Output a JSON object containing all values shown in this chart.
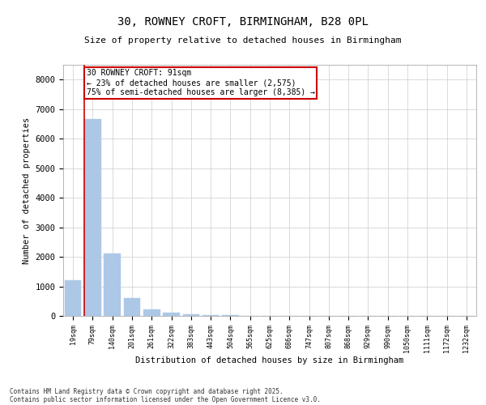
{
  "title_line1": "30, ROWNEY CROFT, BIRMINGHAM, B28 0PL",
  "title_line2": "Size of property relative to detached houses in Birmingham",
  "xlabel": "Distribution of detached houses by size in Birmingham",
  "ylabel": "Number of detached properties",
  "categories": [
    "19sqm",
    "79sqm",
    "140sqm",
    "201sqm",
    "261sqm",
    "322sqm",
    "383sqm",
    "443sqm",
    "504sqm",
    "565sqm",
    "625sqm",
    "686sqm",
    "747sqm",
    "807sqm",
    "868sqm",
    "929sqm",
    "990sqm",
    "1050sqm",
    "1111sqm",
    "1172sqm",
    "1232sqm"
  ],
  "values": [
    1200,
    6650,
    2100,
    600,
    230,
    120,
    60,
    30,
    15,
    8,
    5,
    3,
    2,
    2,
    1,
    1,
    1,
    0,
    0,
    0,
    0
  ],
  "bar_color": "#adc8e6",
  "bar_edge_color": "#adc8e6",
  "vline_color": "#cc0000",
  "vline_x_idx": 1,
  "annotation_text": "30 ROWNEY CROFT: 91sqm\n← 23% of detached houses are smaller (2,575)\n75% of semi-detached houses are larger (8,385) →",
  "annotation_box_color": "#ffffff",
  "annotation_edge_color": "#cc0000",
  "ylim": [
    0,
    8500
  ],
  "yticks": [
    0,
    1000,
    2000,
    3000,
    4000,
    5000,
    6000,
    7000,
    8000
  ],
  "background_color": "#ffffff",
  "grid_color": "#cccccc",
  "footer_line1": "Contains HM Land Registry data © Crown copyright and database right 2025.",
  "footer_line2": "Contains public sector information licensed under the Open Government Licence v3.0."
}
